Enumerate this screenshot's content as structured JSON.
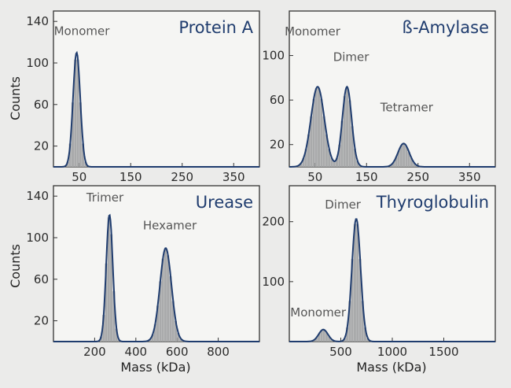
{
  "figure": {
    "ylabel": "Counts",
    "xlabel": "Mass (kDa)"
  },
  "chart_data": [
    {
      "type": "histogram",
      "title": "Protein A",
      "ylabel": "Counts",
      "xlabel": "",
      "xlim": [
        0,
        400
      ],
      "ylim": [
        0,
        150
      ],
      "xticks": [
        50,
        150,
        250,
        350
      ],
      "yticks": [
        20,
        60,
        100,
        140
      ],
      "peaks": [
        {
          "label": "Monomer",
          "mass": 45,
          "counts": 110,
          "sigma": 7
        }
      ],
      "annotations": [
        {
          "text": "Monomer",
          "x": 55,
          "y": 127
        }
      ]
    },
    {
      "type": "histogram",
      "title": "ß-Amylase",
      "ylabel": "",
      "xlabel": "",
      "xlim": [
        0,
        400
      ],
      "ylim": [
        0,
        140
      ],
      "xticks": [
        50,
        150,
        250,
        350
      ],
      "yticks": [
        20,
        60,
        100
      ],
      "peaks": [
        {
          "label": "Monomer",
          "mass": 55,
          "counts": 72,
          "sigma": 13
        },
        {
          "label": "Dimer",
          "mass": 112,
          "counts": 72,
          "sigma": 9
        },
        {
          "label": "Tetramer",
          "mass": 222,
          "counts": 21,
          "sigma": 11
        }
      ],
      "annotations": [
        {
          "text": "Monomer",
          "x": 45,
          "y": 118
        },
        {
          "text": "Dimer",
          "x": 120,
          "y": 95
        },
        {
          "text": "Tetramer",
          "x": 228,
          "y": 50
        }
      ]
    },
    {
      "type": "histogram",
      "title": "Urease",
      "ylabel": "Counts",
      "xlabel": "Mass (kDa)",
      "xlim": [
        0,
        1000
      ],
      "ylim": [
        0,
        150
      ],
      "xticks": [
        200,
        400,
        600,
        800
      ],
      "yticks": [
        20,
        60,
        100,
        140
      ],
      "peaks": [
        {
          "label": "Trimer",
          "mass": 272,
          "counts": 122,
          "sigma": 16
        },
        {
          "label": "Hexamer",
          "mass": 545,
          "counts": 90,
          "sigma": 28
        }
      ],
      "annotations": [
        {
          "text": "Trimer",
          "x": 250,
          "y": 135
        },
        {
          "text": "Hexamer",
          "x": 565,
          "y": 108
        }
      ]
    },
    {
      "type": "histogram",
      "title": "Thyroglobulin",
      "ylabel": "",
      "xlabel": "Mass (kDa)",
      "xlim": [
        0,
        2000
      ],
      "ylim": [
        0,
        260
      ],
      "xticks": [
        500,
        1000,
        1500
      ],
      "yticks": [
        100,
        200
      ],
      "peaks": [
        {
          "label": "Monomer",
          "mass": 330,
          "counts": 20,
          "sigma": 45
        },
        {
          "label": "Dimer",
          "mass": 650,
          "counts": 205,
          "sigma": 42
        }
      ],
      "annotations": [
        {
          "text": "Monomer",
          "x": 280,
          "y": 42
        },
        {
          "text": "Dimer",
          "x": 520,
          "y": 222
        }
      ]
    }
  ]
}
